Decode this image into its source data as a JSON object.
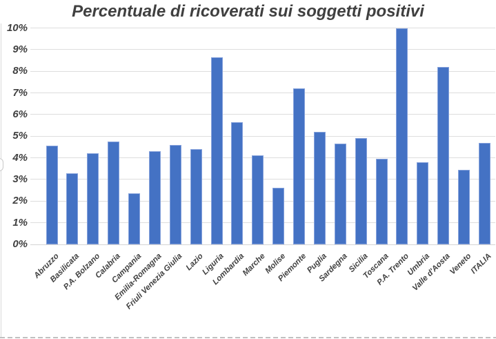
{
  "chart_data": {
    "type": "bar",
    "title": "Percentuale di ricoverati sui soggetti positivi",
    "categories": [
      "Abruzzo",
      "Basilicata",
      "P.A. Bolzano",
      "Calabria",
      "Campania",
      "Emilia-Romagna",
      "Friuli Venezia Giulia",
      "Lazio",
      "Liguria",
      "Lombardia",
      "Marche",
      "Molise",
      "Piemonte",
      "Puglia",
      "Sardegna",
      "Sicilia",
      "Toscana",
      "P.A. Trento",
      "Umbria",
      "Valle d'Aosta",
      "Veneto",
      "ITALIA"
    ],
    "values": [
      4.55,
      3.3,
      4.2,
      4.75,
      2.35,
      4.3,
      4.6,
      4.4,
      8.65,
      5.65,
      4.1,
      2.6,
      7.2,
      5.2,
      4.65,
      4.9,
      3.95,
      10.0,
      3.8,
      8.2,
      3.45,
      4.7
    ],
    "y_ticks": [
      "0%",
      "1%",
      "2%",
      "3%",
      "4%",
      "5%",
      "6%",
      "7%",
      "8%",
      "9%",
      "10%"
    ],
    "ylim": [
      0,
      10
    ],
    "xlabel": "",
    "ylabel": "",
    "grid": "horizontal",
    "legend": "none",
    "bar_color": "#4472C4",
    "bar_edge_color": "#86a2dc",
    "grid_color": "#dddddd",
    "text_color": "#404040"
  }
}
